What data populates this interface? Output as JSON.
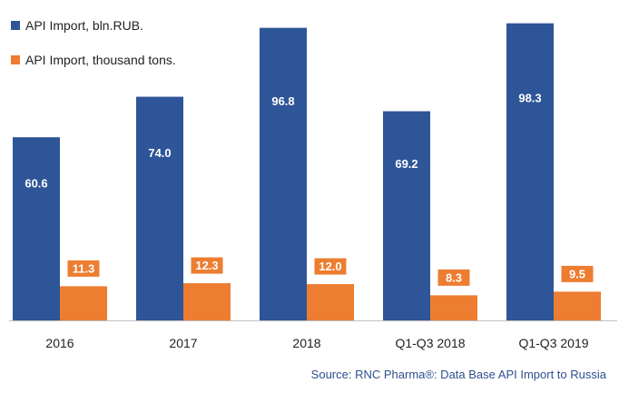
{
  "chart_data": {
    "type": "bar",
    "categories": [
      "2016",
      "2017",
      "2018",
      "Q1-Q3 2018",
      "Q1-Q3 2019"
    ],
    "series": [
      {
        "name": "API Import, bln.RUB.",
        "values": [
          60.6,
          74.0,
          96.8,
          69.2,
          98.3
        ],
        "labels": [
          "60.6",
          "74.0",
          "96.8",
          "69.2",
          "98.3"
        ],
        "color": "#2e5597"
      },
      {
        "name": "API Import, thousand tons.",
        "values": [
          11.3,
          12.3,
          12.0,
          8.3,
          9.5
        ],
        "labels": [
          "11.3",
          "12.3",
          "12.0",
          "8.3",
          "9.5"
        ],
        "color": "#ed7d31"
      }
    ],
    "title": "",
    "xlabel": "",
    "ylabel": "",
    "ylim": [
      0,
      100
    ],
    "grid": false,
    "legend": "top-left"
  },
  "source": "Source: RNC Pharma®: Data Base API Import to Russia"
}
